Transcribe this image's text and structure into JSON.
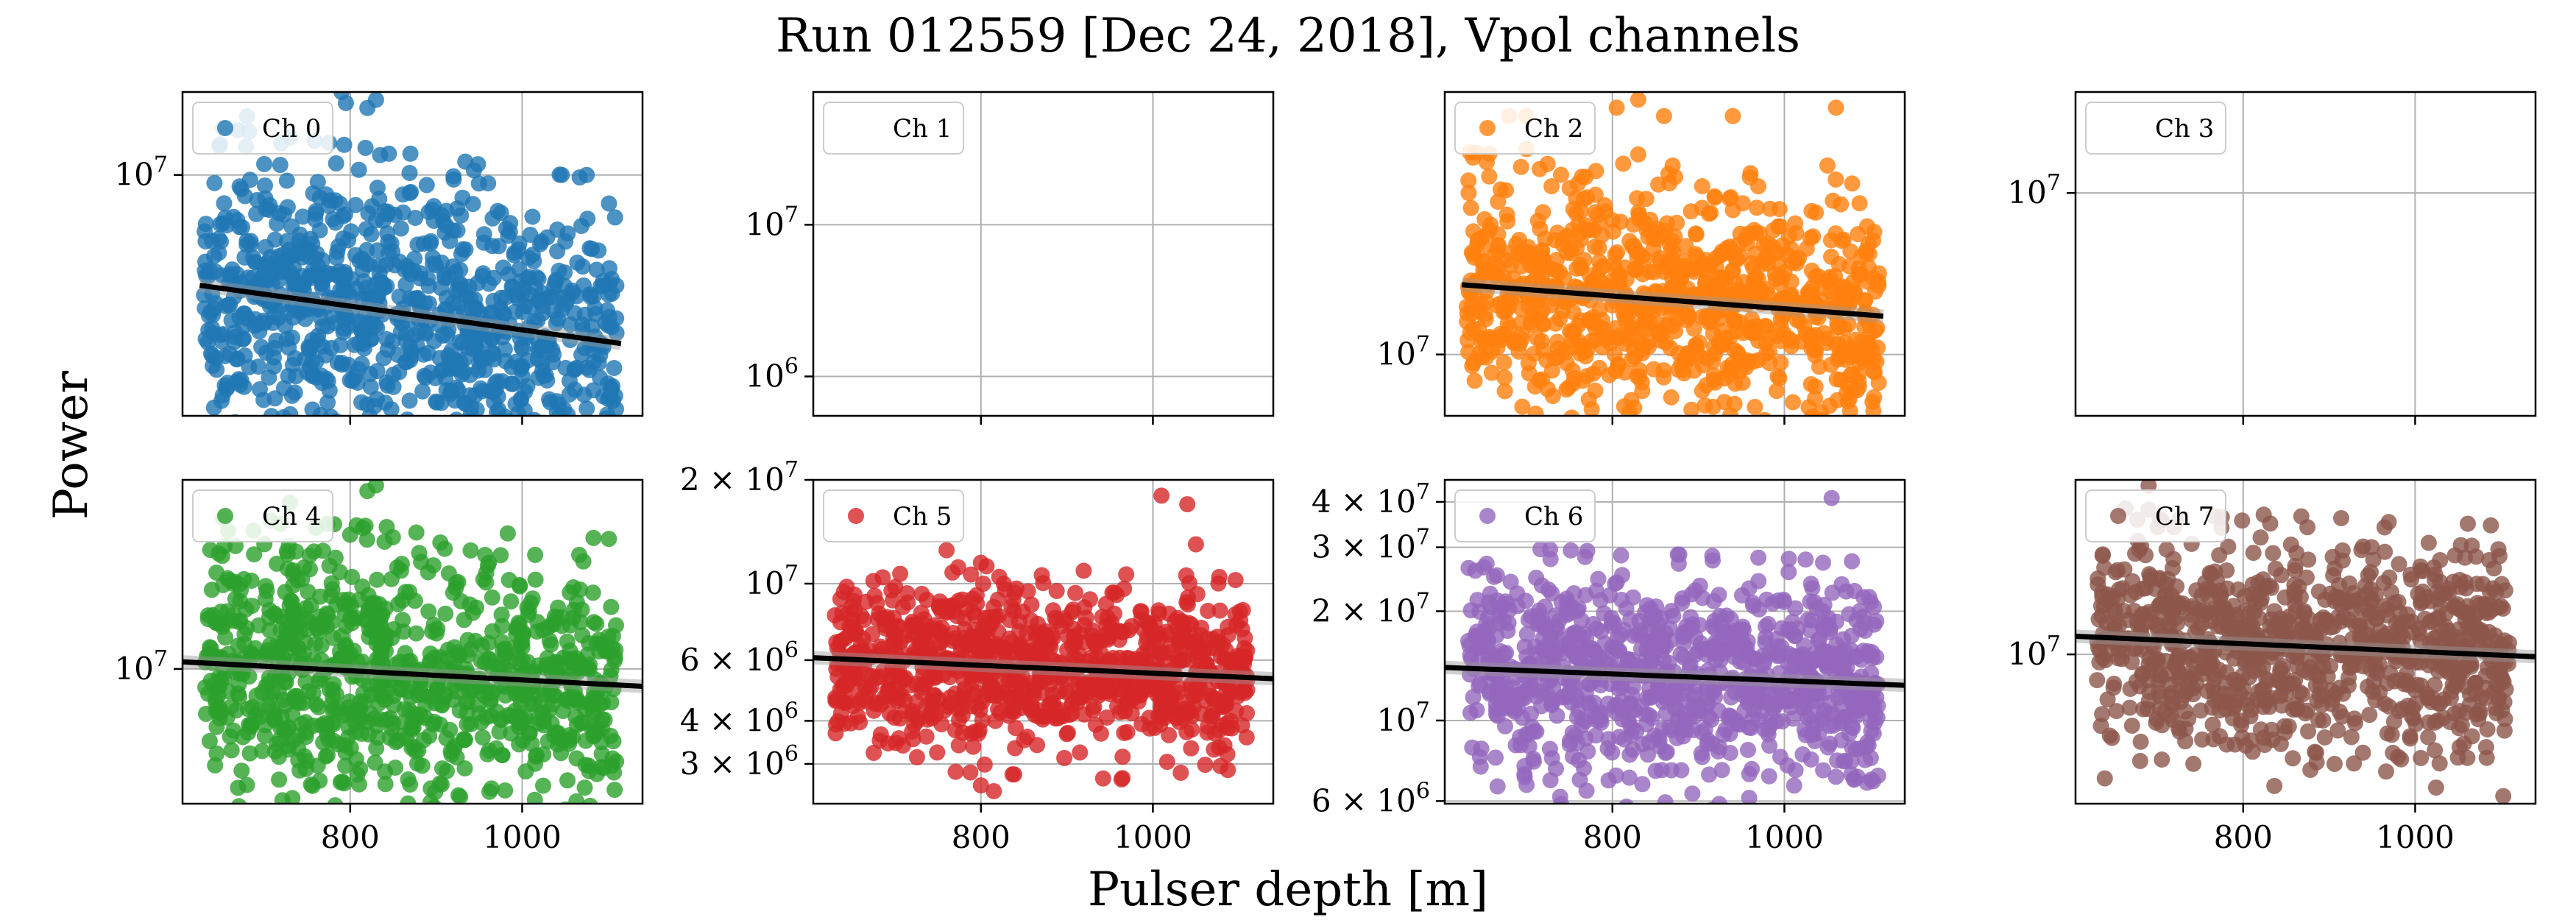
{
  "figure": {
    "title": "Run 012559 [Dec 24, 2018], Vpol channels",
    "xlabel": "Pulser depth [m]",
    "ylabel": "Power"
  },
  "chart_data": [
    {
      "type": "scatter",
      "channel": "Ch 0",
      "color": "#1f77b4",
      "has_data": true,
      "xlim": [
        605,
        1140
      ],
      "ylim": [
        3400000.0,
        14500000.0
      ],
      "yscale": "log",
      "xticks": [
        800,
        1000
      ],
      "yticks": [
        10000000.0
      ],
      "n_points": 950,
      "spread": 0.13,
      "fit": {
        "x": [
          625,
          1115
        ],
        "y": [
          6100000.0,
          4700000.0
        ]
      },
      "outliers": [
        [
          830,
          14000000.0
        ],
        [
          820,
          13500000.0
        ],
        [
          795,
          13800000.0
        ],
        [
          790,
          14500000.0
        ],
        [
          680,
          13000000.0
        ],
        [
          700,
          10500000.0
        ],
        [
          845,
          11000000.0
        ],
        [
          870,
          11000000.0
        ],
        [
          1075,
          10000000.0
        ],
        [
          760,
          8500000.0
        ],
        [
          780,
          8200000.0
        ],
        [
          840,
          8500000.0
        ]
      ]
    },
    {
      "type": "scatter",
      "channel": "Ch 1",
      "color": "#ffffff",
      "has_data": false,
      "xlim": [
        605,
        1140
      ],
      "ylim": [
        550000.0,
        75000000.0
      ],
      "yscale": "log",
      "xticks": [
        800,
        1000
      ],
      "yticks": [
        1000000.0,
        10000000.0
      ]
    },
    {
      "type": "scatter",
      "channel": "Ch 2",
      "color": "#ff7f0e",
      "has_data": true,
      "xlim": [
        605,
        1140
      ],
      "ylim": [
        7000000.0,
        46000000.0
      ],
      "yscale": "log",
      "xticks": [
        800,
        1000
      ],
      "yticks": [
        10000000.0
      ],
      "n_points": 950,
      "spread": 0.14,
      "fit": {
        "x": [
          625,
          1115
        ],
        "y": [
          15000000.0,
          12500000.0
        ]
      },
      "outliers": [
        [
          680,
          40000000.0
        ],
        [
          700,
          40000000.0
        ],
        [
          805,
          42000000.0
        ],
        [
          830,
          44000000.0
        ],
        [
          860,
          40000000.0
        ],
        [
          940,
          40000000.0
        ],
        [
          1060,
          42000000.0
        ],
        [
          830,
          32000000.0
        ],
        [
          870,
          30000000.0
        ],
        [
          960,
          28000000.0
        ],
        [
          1050,
          30000000.0
        ],
        [
          700,
          33000000.0
        ],
        [
          760,
          27000000.0
        ]
      ]
    },
    {
      "type": "scatter",
      "channel": "Ch 3",
      "color": "#ffffff",
      "has_data": false,
      "xlim": [
        605,
        1140
      ],
      "ylim": [
        3800000.0,
        15500000.0
      ],
      "yscale": "log",
      "xticks": [
        800,
        1000
      ],
      "yticks": [
        10000000.0
      ]
    },
    {
      "type": "scatter",
      "channel": "Ch 4",
      "color": "#2ca02c",
      "has_data": true,
      "xlim": [
        605,
        1140
      ],
      "ylim": [
        5700000.0,
        22000000.0
      ],
      "yscale": "log",
      "xticks": [
        800,
        1000
      ],
      "yticks": [
        10000000.0
      ],
      "n_points": 950,
      "spread": 0.11,
      "fit": {
        "x": [
          605,
          1140
        ],
        "y": [
          10300000.0,
          9300000.0
        ]
      },
      "outliers": [
        [
          830,
          21500000.0
        ],
        [
          820,
          21000000.0
        ],
        [
          730,
          20000000.0
        ],
        [
          815,
          18000000.0
        ],
        [
          800,
          17500000.0
        ],
        [
          840,
          17000000.0
        ],
        [
          760,
          18000000.0
        ],
        [
          910,
          16500000.0
        ],
        [
          860,
          15500000.0
        ]
      ]
    },
    {
      "type": "scatter",
      "channel": "Ch 5",
      "color": "#d62728",
      "has_data": true,
      "xlim": [
        605,
        1140
      ],
      "ylim": [
        2300000.0,
        20000000.0
      ],
      "yscale": "log",
      "xticks": [
        800,
        1000
      ],
      "yticks": [
        3000000.0,
        4000000.0,
        6000000.0,
        10000000.0,
        20000000.0
      ],
      "n_points": 950,
      "spread": 0.12,
      "fit": {
        "x": [
          605,
          1140
        ],
        "y": [
          6100000.0,
          5300000.0
        ]
      },
      "outliers": [
        [
          1010,
          18000000.0
        ],
        [
          1040,
          17000000.0
        ],
        [
          1050,
          13000000.0
        ],
        [
          760,
          12500000.0
        ],
        [
          800,
          11500000.0
        ],
        [
          800,
          2600000.0
        ],
        [
          815,
          2500000.0
        ]
      ]
    },
    {
      "type": "scatter",
      "channel": "Ch 6",
      "color": "#9467bd",
      "has_data": true,
      "xlim": [
        605,
        1140
      ],
      "ylim": [
        5900000.0,
        46000000.0
      ],
      "yscale": "log",
      "xticks": [
        800,
        1000
      ],
      "yticks": [
        6000000.0,
        10000000.0,
        20000000.0,
        30000000.0,
        40000000.0
      ],
      "n_points": 950,
      "spread": 0.14,
      "fit": {
        "x": [
          605,
          1140
        ],
        "y": [
          14000000.0,
          12500000.0
        ]
      },
      "outliers": [
        [
          1055,
          41000000.0
        ],
        [
          810,
          28500000.0
        ],
        [
          805,
          24000000.0
        ],
        [
          1060,
          7000000.0
        ],
        [
          1085,
          7000000.0
        ]
      ]
    },
    {
      "type": "scatter",
      "channel": "Ch 7",
      "color": "#8c564b",
      "has_data": true,
      "xlim": [
        605,
        1140
      ],
      "ylim": [
        5300000.0,
        21000000.0
      ],
      "yscale": "log",
      "xticks": [
        800,
        1000
      ],
      "yticks": [
        10000000.0
      ],
      "n_points": 950,
      "spread": 0.1,
      "fit": {
        "x": [
          605,
          1140
        ],
        "y": [
          10800000.0,
          9900000.0
        ]
      },
      "outliers": [
        [
          690,
          20500000.0
        ],
        [
          690,
          18500000.0
        ],
        [
          740,
          16000000.0
        ]
      ]
    }
  ]
}
